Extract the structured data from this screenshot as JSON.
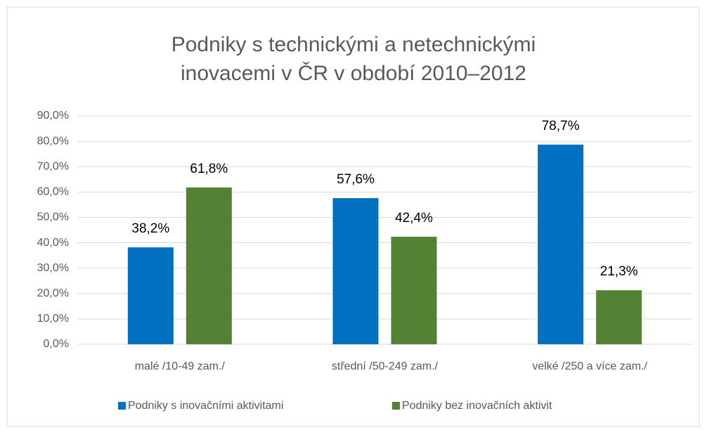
{
  "chart_data": {
    "type": "bar",
    "title": [
      "Podniky s technickými a netechnickými",
      "inovacemi v ČR v období 2010–2012"
    ],
    "categories": [
      "malé  /10-49 zam./",
      "střední  /50-249 zam./",
      "velké  /250 a více zam./"
    ],
    "series": [
      {
        "name": "Podniky s inovačními aktivitami",
        "color": "#0070c0",
        "values": [
          38.2,
          57.6,
          78.7
        ],
        "value_labels": [
          "38,2%",
          "57,6%",
          "78,7%"
        ]
      },
      {
        "name": "Podniky bez inovačních aktivit",
        "color": "#548235",
        "values": [
          61.8,
          42.4,
          21.3
        ],
        "value_labels": [
          "61,8%",
          "42,4%",
          "21,3%"
        ]
      }
    ],
    "ylim": [
      0,
      90
    ],
    "yticks": [
      {
        "value": 0,
        "label": "0,0%"
      },
      {
        "value": 10,
        "label": "10,0%"
      },
      {
        "value": 20,
        "label": "20,0%"
      },
      {
        "value": 30,
        "label": "30,0%"
      },
      {
        "value": 40,
        "label": "40,0%"
      },
      {
        "value": 50,
        "label": "50,0%"
      },
      {
        "value": 60,
        "label": "60,0%"
      },
      {
        "value": 70,
        "label": "70,0%"
      },
      {
        "value": 80,
        "label": "80,0%"
      },
      {
        "value": 90,
        "label": "90,0%"
      }
    ],
    "grid": true,
    "legend": "bottom"
  }
}
